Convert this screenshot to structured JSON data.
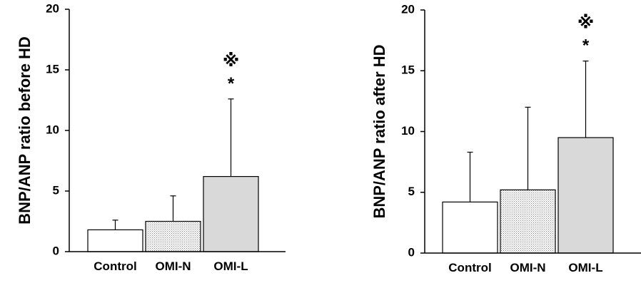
{
  "chart_data": [
    {
      "type": "bar",
      "ylabel": "BNP/ANP ratio before HD",
      "xlabel": "",
      "title": "",
      "categories": [
        "Control",
        "OMI-N",
        "OMI-L"
      ],
      "values": [
        1.8,
        2.5,
        6.2
      ],
      "error_upper": [
        2.6,
        4.6,
        12.6
      ],
      "fills": [
        "white",
        "dotted",
        "gray"
      ],
      "significance": [
        {
          "category": "OMI-L",
          "marks": [
            "※",
            "*"
          ]
        }
      ],
      "ylim": [
        0,
        20
      ],
      "yticks": [
        0,
        5,
        10,
        15,
        20
      ],
      "grid": false
    },
    {
      "type": "bar",
      "ylabel": "BNP/ANP ratio after HD",
      "xlabel": "",
      "title": "",
      "categories": [
        "Control",
        "OMI-N",
        "OMI-L"
      ],
      "values": [
        4.2,
        5.2,
        9.5
      ],
      "error_upper": [
        8.3,
        12.0,
        15.8
      ],
      "fills": [
        "white",
        "dotted",
        "gray"
      ],
      "significance": [
        {
          "category": "OMI-L",
          "marks": [
            "※",
            "*"
          ]
        }
      ],
      "ylim": [
        0,
        20
      ],
      "yticks": [
        0,
        5,
        10,
        15,
        20
      ],
      "grid": false
    }
  ]
}
